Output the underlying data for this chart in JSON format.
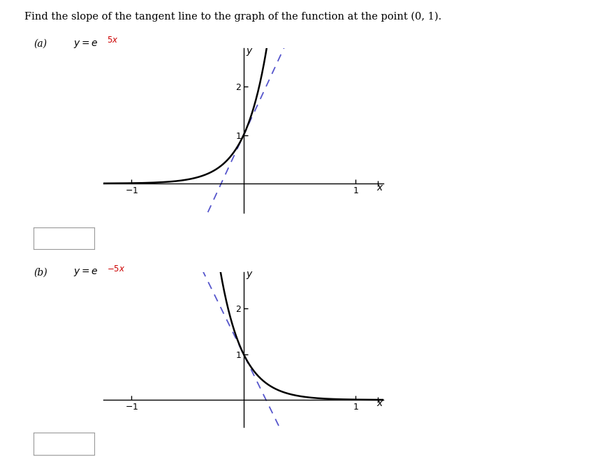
{
  "title": "Find the slope of the tangent line to the graph of the function at the point (0, 1).",
  "title_color": "#000000",
  "title_fontsize": 10.5,
  "curve_color": "#000000",
  "tangent_color": "#5555cc",
  "axis_color": "#000000",
  "xlim": [
    -1.25,
    1.25
  ],
  "ylim_a": [
    -0.6,
    2.8
  ],
  "ylim_b": [
    -0.6,
    2.8
  ],
  "xticks": [
    -1,
    1
  ],
  "yticks": [
    1,
    2
  ],
  "background_color": "#ffffff"
}
